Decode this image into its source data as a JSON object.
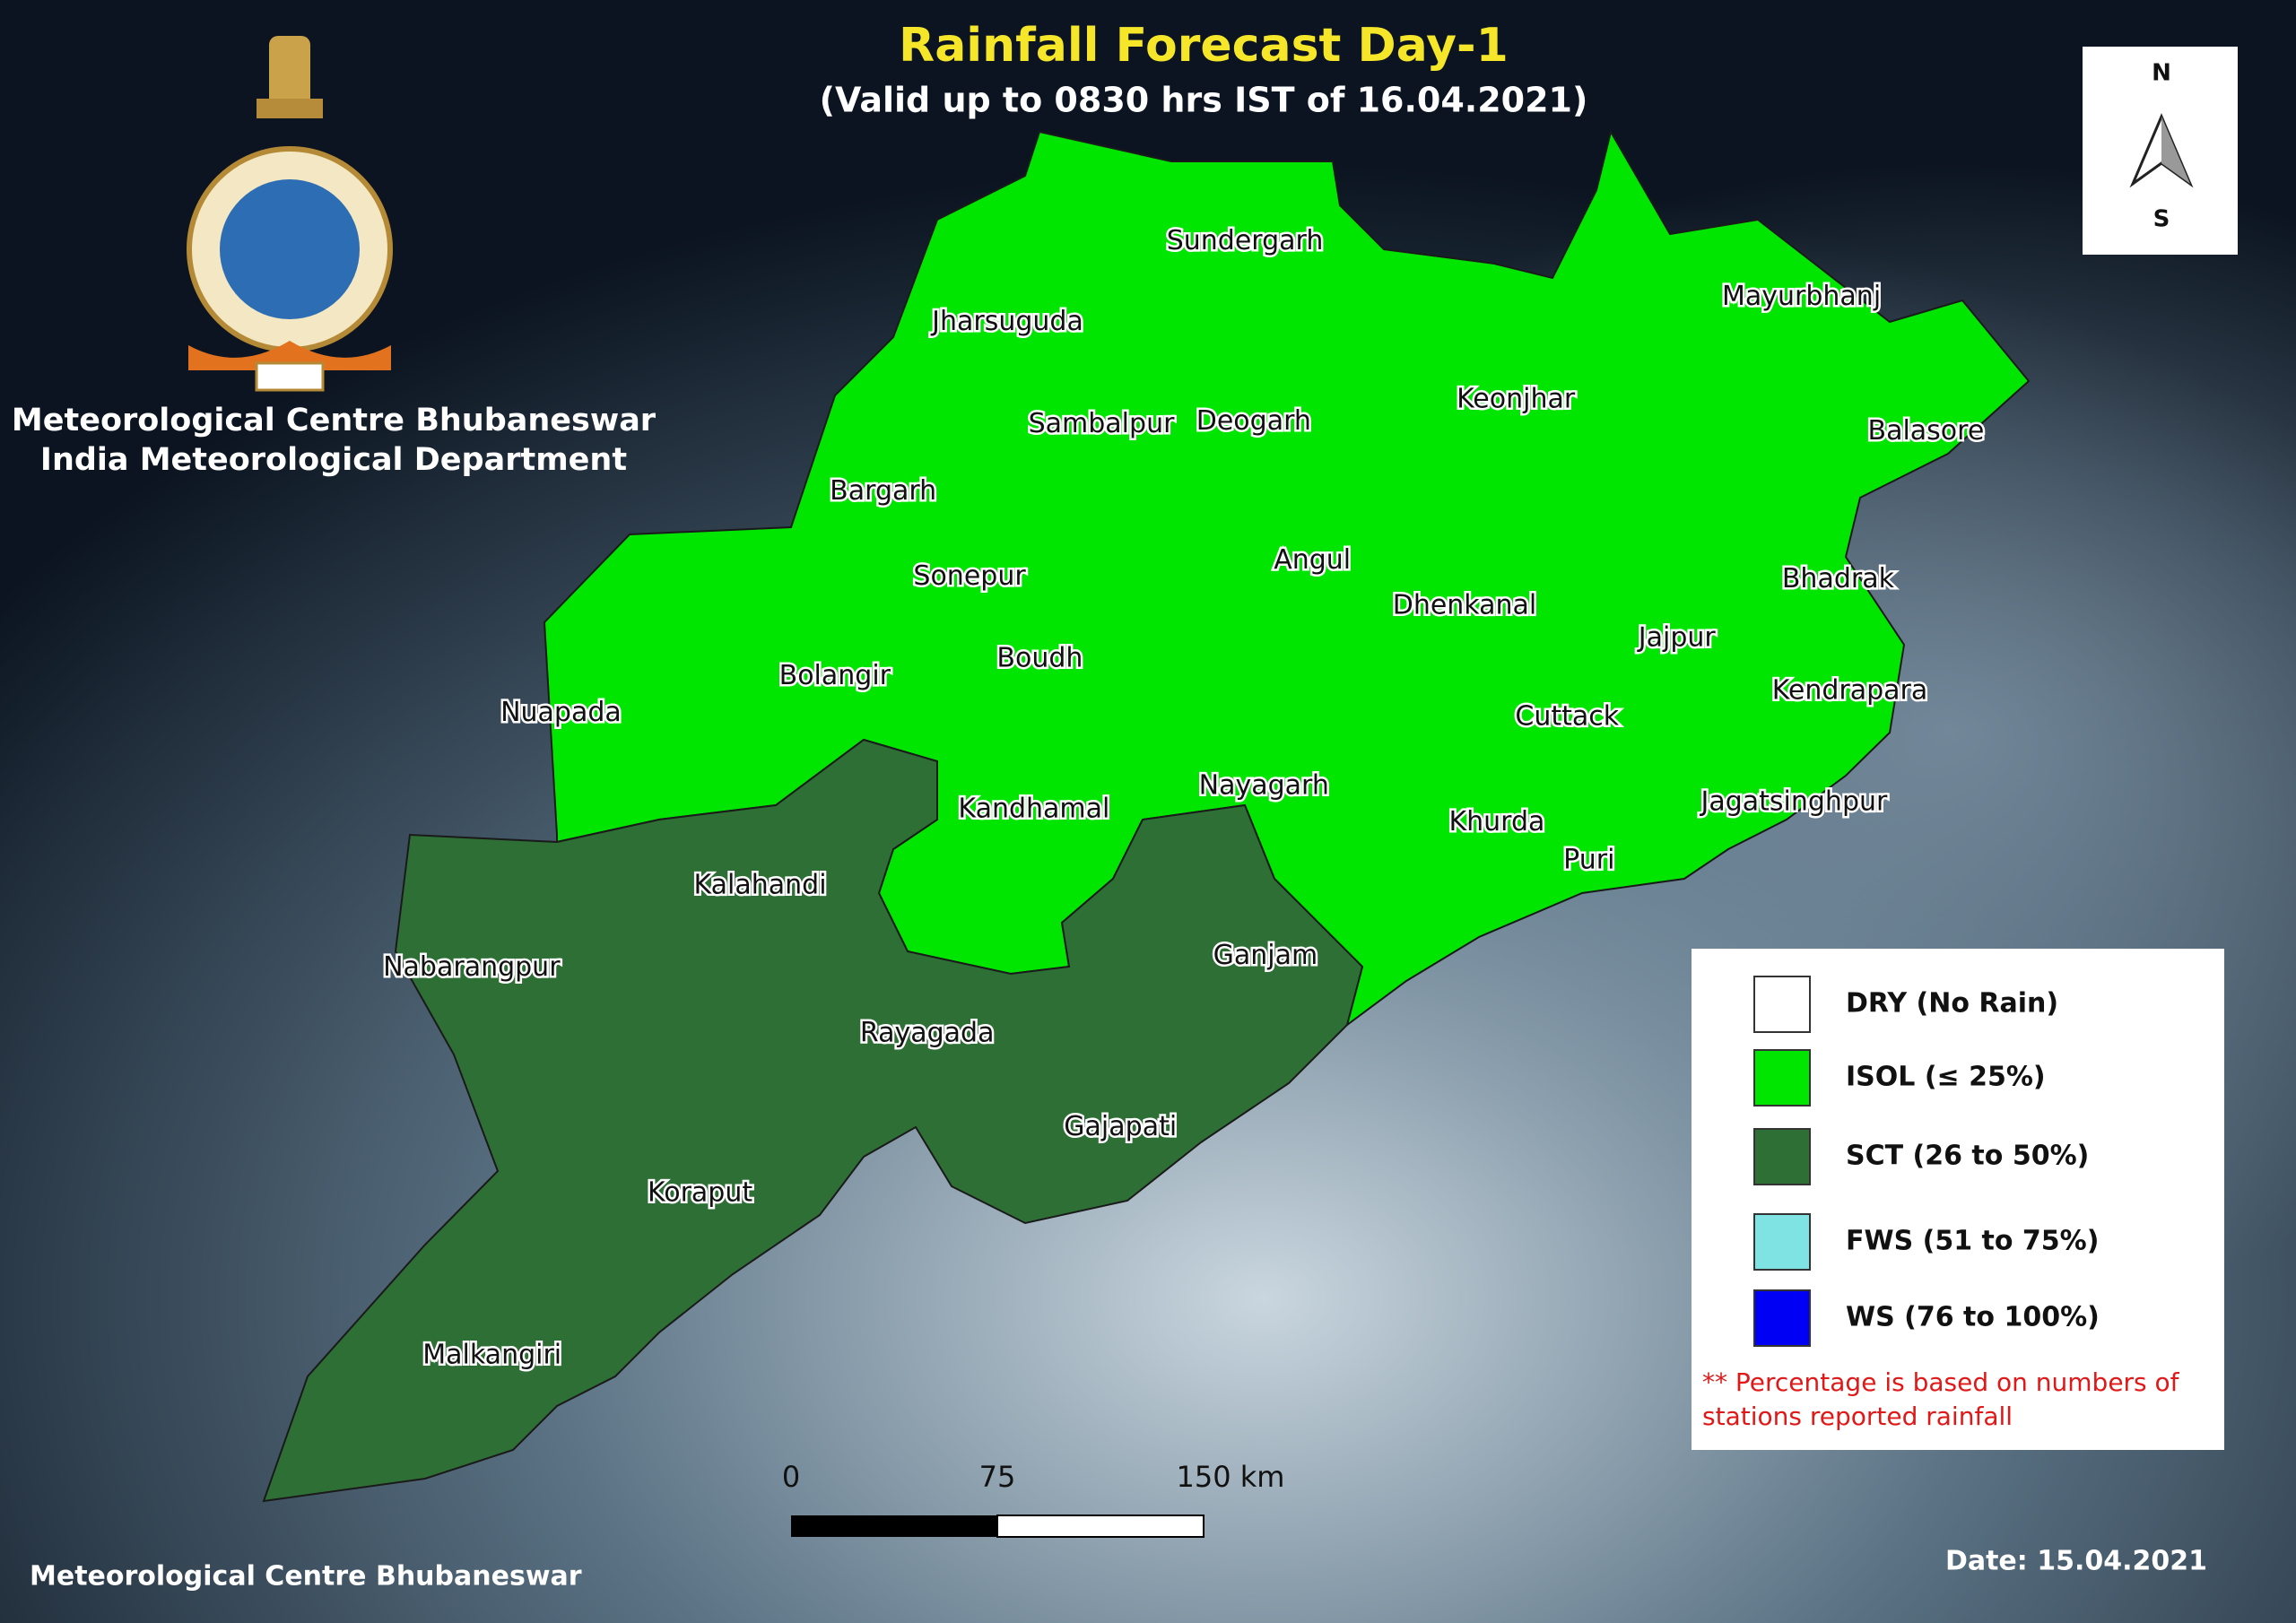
{
  "header": {
    "title": "Rainfall Forecast Day-1",
    "subtitle": "(Valid up to 0830 hrs IST of 16.04.2021)"
  },
  "organization": [
    "Meteorological Centre Bhubaneswar",
    "India Meteorological Department"
  ],
  "compass": {
    "north": "N",
    "south": "S"
  },
  "legend": {
    "items": [
      {
        "label": "DRY (No Rain)",
        "color": "#ffffff",
        "districts": []
      },
      {
        "label": "ISOL (≤ 25%)",
        "color": "#00e600",
        "districts": [
          "Sundergarh",
          "Jharsuguda",
          "Mayurbhanj",
          "Keonjhar",
          "Sambalpur",
          "Deogarh",
          "Balasore",
          "Bargarh",
          "Sonepur",
          "Angul",
          "Bhadrak",
          "Dhenkanal",
          "Jajpur",
          "Boudh",
          "Bolangir",
          "Kendrapara",
          "Nuapada",
          "Cuttack",
          "Nayagarh",
          "Jagatsinghpur",
          "Kandhamal",
          "Khurda",
          "Puri"
        ]
      },
      {
        "label": "SCT (26 to 50%)",
        "color": "#2e6f35",
        "districts": [
          "Kalahandi",
          "Nabarangpur",
          "Ganjam",
          "Rayagada",
          "Gajapati",
          "Koraput",
          "Malkangiri"
        ]
      },
      {
        "label": "FWS (51 to 75%)",
        "color": "#7fe3e3",
        "districts": []
      },
      {
        "label": "WS (76 to 100%)",
        "color": "#0000f5",
        "districts": []
      }
    ],
    "note": [
      "** Percentage is based on numbers of",
      "stations reported rainfall"
    ]
  },
  "scale_bar": [
    "0",
    "75",
    "150 km"
  ],
  "date": "Date: 15.04.2021",
  "footer": "Meteorological Centre Bhubaneswar"
}
